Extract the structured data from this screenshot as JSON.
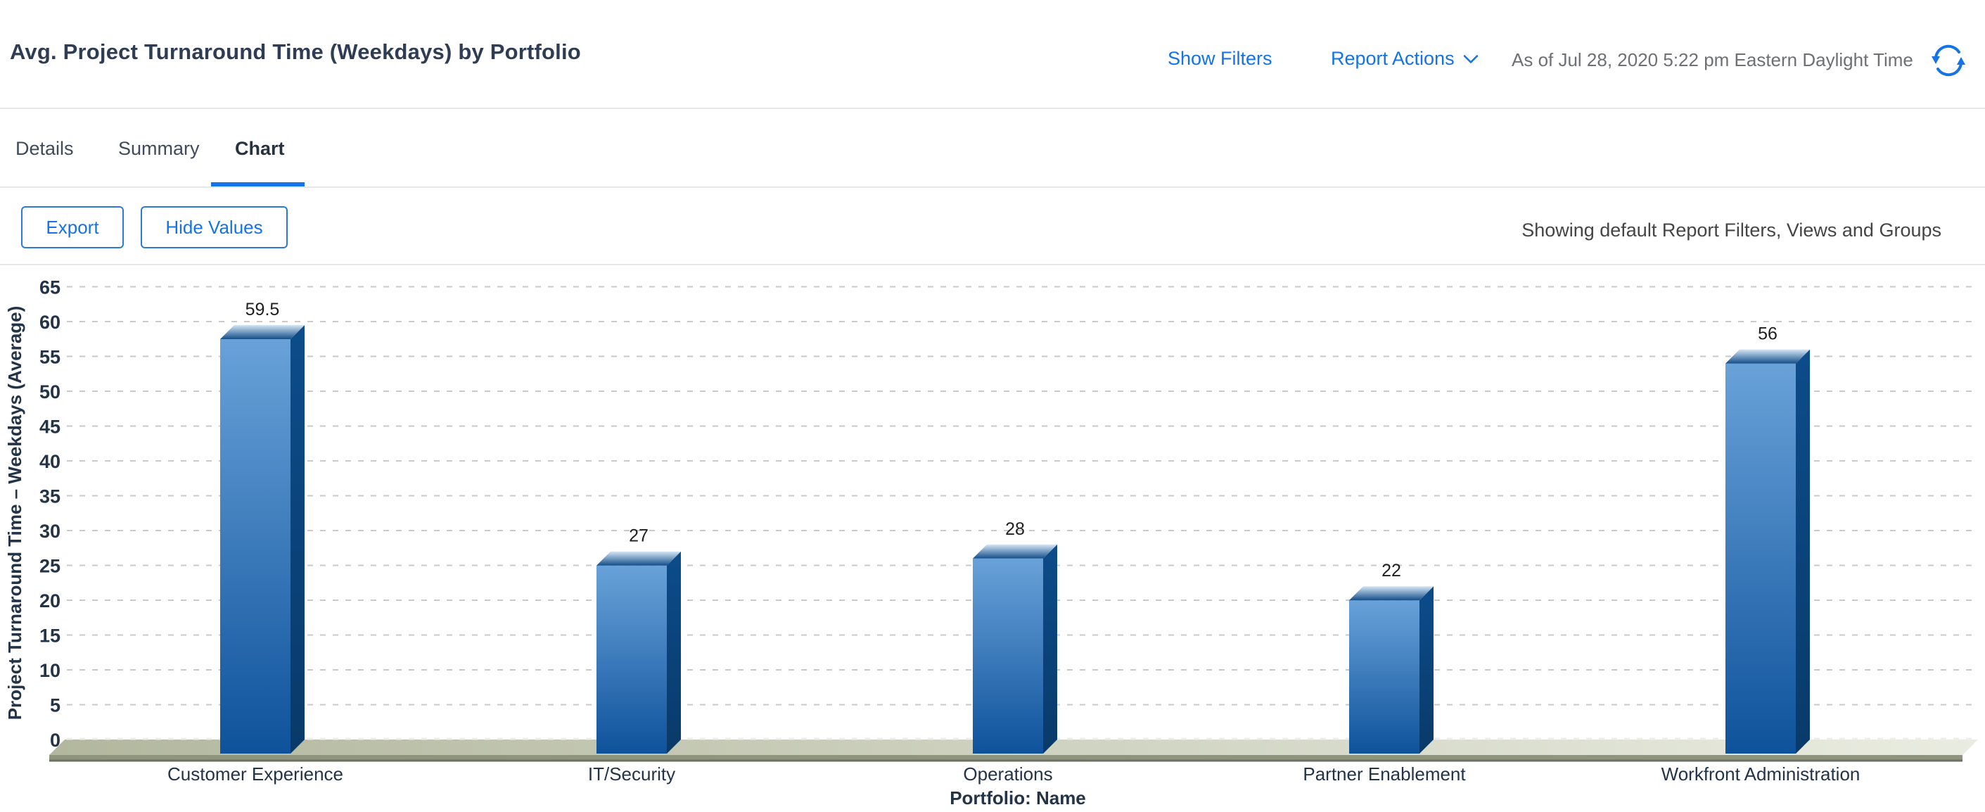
{
  "header": {
    "title": "Avg. Project Turnaround Time (Weekdays) by Portfolio",
    "show_filters_label": "Show Filters",
    "report_actions_label": "Report Actions",
    "as_of": "As of Jul 28, 2020 5:22 pm Eastern Daylight Time"
  },
  "tabs": [
    {
      "label": "Details",
      "active": false
    },
    {
      "label": "Summary",
      "active": false
    },
    {
      "label": "Chart",
      "active": true
    }
  ],
  "toolbar": {
    "export_label": "Export",
    "hide_values_label": "Hide Values",
    "filters_note": "Showing default Report Filters, Views and Groups"
  },
  "colors": {
    "link_blue": "#1473e6",
    "title_text": "#2e3d54",
    "muted_text": "#6e7073",
    "chart_text": "#233449",
    "value_label_text": "#1f1f1f",
    "grid": "#c9c9c9",
    "bar_front_top": "#69a2d9",
    "bar_front_bottom": "#0e529b",
    "bar_side_top": "#0c4c8a",
    "bar_side_bottom": "#093a69",
    "bar_top_light": "#d4e6f6",
    "bar_top_dark": "#144e89",
    "floor_left": "#b2b79e",
    "floor_right": "#e9ece0",
    "floor_front": "#8f947c",
    "floor_edge": "#6e7264"
  },
  "chart_data": {
    "type": "bar",
    "style": "3d-column",
    "categories": [
      "Customer Experience",
      "IT/Security",
      "Operations",
      "Partner Enablement",
      "Workfront Administration"
    ],
    "values": [
      59.5,
      27,
      28,
      22,
      56
    ],
    "value_labels": [
      "59.5",
      "27",
      "28",
      "22",
      "56"
    ],
    "xlabel": "Portfolio: Name",
    "ylabel": "Project Turnaround Time – Weekdays (Average)",
    "ylim": [
      0,
      65
    ],
    "ytick_step": 5,
    "grid": "horizontal-dashed",
    "legend": "none",
    "bar_color": "blue-gradient-3d"
  }
}
